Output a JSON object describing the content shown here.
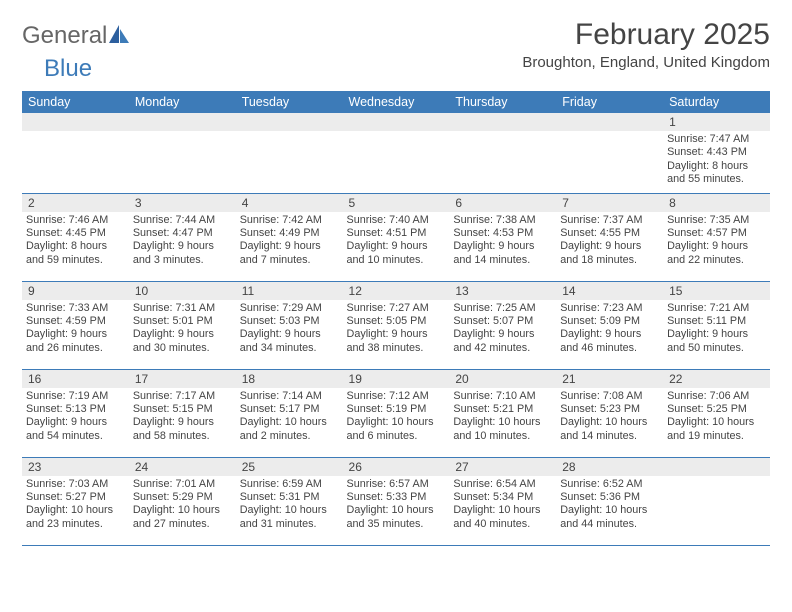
{
  "logo": {
    "part1": "General",
    "part2": "Blue"
  },
  "title": "February 2025",
  "subtitle": "Broughton, England, United Kingdom",
  "day_headers": [
    "Sunday",
    "Monday",
    "Tuesday",
    "Wednesday",
    "Thursday",
    "Friday",
    "Saturday"
  ],
  "colors": {
    "header_bg": "#3d7bb8",
    "header_text": "#ffffff",
    "daynum_bg": "#ececec",
    "text": "#444444",
    "row_border": "#3d7bb8"
  },
  "weeks": [
    [
      null,
      null,
      null,
      null,
      null,
      null,
      {
        "num": "1",
        "sunrise": "Sunrise: 7:47 AM",
        "sunset": "Sunset: 4:43 PM",
        "daylight1": "Daylight: 8 hours",
        "daylight2": "and 55 minutes."
      }
    ],
    [
      {
        "num": "2",
        "sunrise": "Sunrise: 7:46 AM",
        "sunset": "Sunset: 4:45 PM",
        "daylight1": "Daylight: 8 hours",
        "daylight2": "and 59 minutes."
      },
      {
        "num": "3",
        "sunrise": "Sunrise: 7:44 AM",
        "sunset": "Sunset: 4:47 PM",
        "daylight1": "Daylight: 9 hours",
        "daylight2": "and 3 minutes."
      },
      {
        "num": "4",
        "sunrise": "Sunrise: 7:42 AM",
        "sunset": "Sunset: 4:49 PM",
        "daylight1": "Daylight: 9 hours",
        "daylight2": "and 7 minutes."
      },
      {
        "num": "5",
        "sunrise": "Sunrise: 7:40 AM",
        "sunset": "Sunset: 4:51 PM",
        "daylight1": "Daylight: 9 hours",
        "daylight2": "and 10 minutes."
      },
      {
        "num": "6",
        "sunrise": "Sunrise: 7:38 AM",
        "sunset": "Sunset: 4:53 PM",
        "daylight1": "Daylight: 9 hours",
        "daylight2": "and 14 minutes."
      },
      {
        "num": "7",
        "sunrise": "Sunrise: 7:37 AM",
        "sunset": "Sunset: 4:55 PM",
        "daylight1": "Daylight: 9 hours",
        "daylight2": "and 18 minutes."
      },
      {
        "num": "8",
        "sunrise": "Sunrise: 7:35 AM",
        "sunset": "Sunset: 4:57 PM",
        "daylight1": "Daylight: 9 hours",
        "daylight2": "and 22 minutes."
      }
    ],
    [
      {
        "num": "9",
        "sunrise": "Sunrise: 7:33 AM",
        "sunset": "Sunset: 4:59 PM",
        "daylight1": "Daylight: 9 hours",
        "daylight2": "and 26 minutes."
      },
      {
        "num": "10",
        "sunrise": "Sunrise: 7:31 AM",
        "sunset": "Sunset: 5:01 PM",
        "daylight1": "Daylight: 9 hours",
        "daylight2": "and 30 minutes."
      },
      {
        "num": "11",
        "sunrise": "Sunrise: 7:29 AM",
        "sunset": "Sunset: 5:03 PM",
        "daylight1": "Daylight: 9 hours",
        "daylight2": "and 34 minutes."
      },
      {
        "num": "12",
        "sunrise": "Sunrise: 7:27 AM",
        "sunset": "Sunset: 5:05 PM",
        "daylight1": "Daylight: 9 hours",
        "daylight2": "and 38 minutes."
      },
      {
        "num": "13",
        "sunrise": "Sunrise: 7:25 AM",
        "sunset": "Sunset: 5:07 PM",
        "daylight1": "Daylight: 9 hours",
        "daylight2": "and 42 minutes."
      },
      {
        "num": "14",
        "sunrise": "Sunrise: 7:23 AM",
        "sunset": "Sunset: 5:09 PM",
        "daylight1": "Daylight: 9 hours",
        "daylight2": "and 46 minutes."
      },
      {
        "num": "15",
        "sunrise": "Sunrise: 7:21 AM",
        "sunset": "Sunset: 5:11 PM",
        "daylight1": "Daylight: 9 hours",
        "daylight2": "and 50 minutes."
      }
    ],
    [
      {
        "num": "16",
        "sunrise": "Sunrise: 7:19 AM",
        "sunset": "Sunset: 5:13 PM",
        "daylight1": "Daylight: 9 hours",
        "daylight2": "and 54 minutes."
      },
      {
        "num": "17",
        "sunrise": "Sunrise: 7:17 AM",
        "sunset": "Sunset: 5:15 PM",
        "daylight1": "Daylight: 9 hours",
        "daylight2": "and 58 minutes."
      },
      {
        "num": "18",
        "sunrise": "Sunrise: 7:14 AM",
        "sunset": "Sunset: 5:17 PM",
        "daylight1": "Daylight: 10 hours",
        "daylight2": "and 2 minutes."
      },
      {
        "num": "19",
        "sunrise": "Sunrise: 7:12 AM",
        "sunset": "Sunset: 5:19 PM",
        "daylight1": "Daylight: 10 hours",
        "daylight2": "and 6 minutes."
      },
      {
        "num": "20",
        "sunrise": "Sunrise: 7:10 AM",
        "sunset": "Sunset: 5:21 PM",
        "daylight1": "Daylight: 10 hours",
        "daylight2": "and 10 minutes."
      },
      {
        "num": "21",
        "sunrise": "Sunrise: 7:08 AM",
        "sunset": "Sunset: 5:23 PM",
        "daylight1": "Daylight: 10 hours",
        "daylight2": "and 14 minutes."
      },
      {
        "num": "22",
        "sunrise": "Sunrise: 7:06 AM",
        "sunset": "Sunset: 5:25 PM",
        "daylight1": "Daylight: 10 hours",
        "daylight2": "and 19 minutes."
      }
    ],
    [
      {
        "num": "23",
        "sunrise": "Sunrise: 7:03 AM",
        "sunset": "Sunset: 5:27 PM",
        "daylight1": "Daylight: 10 hours",
        "daylight2": "and 23 minutes."
      },
      {
        "num": "24",
        "sunrise": "Sunrise: 7:01 AM",
        "sunset": "Sunset: 5:29 PM",
        "daylight1": "Daylight: 10 hours",
        "daylight2": "and 27 minutes."
      },
      {
        "num": "25",
        "sunrise": "Sunrise: 6:59 AM",
        "sunset": "Sunset: 5:31 PM",
        "daylight1": "Daylight: 10 hours",
        "daylight2": "and 31 minutes."
      },
      {
        "num": "26",
        "sunrise": "Sunrise: 6:57 AM",
        "sunset": "Sunset: 5:33 PM",
        "daylight1": "Daylight: 10 hours",
        "daylight2": "and 35 minutes."
      },
      {
        "num": "27",
        "sunrise": "Sunrise: 6:54 AM",
        "sunset": "Sunset: 5:34 PM",
        "daylight1": "Daylight: 10 hours",
        "daylight2": "and 40 minutes."
      },
      {
        "num": "28",
        "sunrise": "Sunrise: 6:52 AM",
        "sunset": "Sunset: 5:36 PM",
        "daylight1": "Daylight: 10 hours",
        "daylight2": "and 44 minutes."
      },
      null
    ]
  ]
}
